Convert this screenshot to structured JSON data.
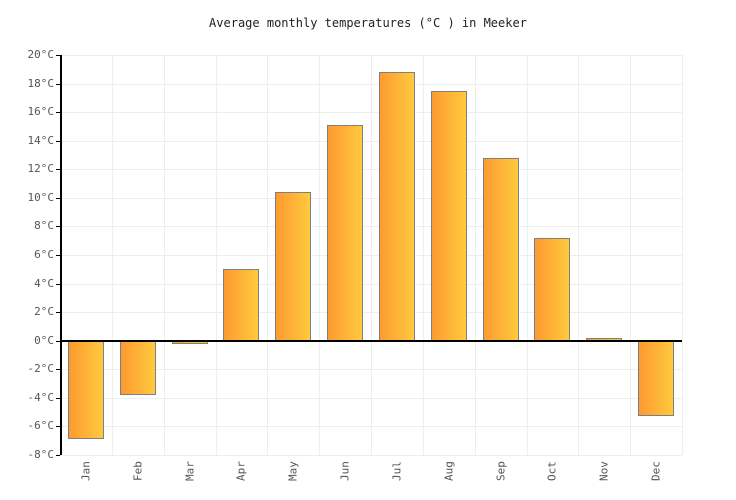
{
  "title": "Average monthly temperatures (°C ) in Meeker",
  "chart_data": {
    "type": "bar",
    "title": "Average monthly temperatures (°C ) in Meeker",
    "categories": [
      "Jan",
      "Feb",
      "Mar",
      "Apr",
      "May",
      "Jun",
      "Jul",
      "Aug",
      "Sep",
      "Oct",
      "Nov",
      "Dec"
    ],
    "values": [
      -6.9,
      -3.8,
      -0.2,
      5.0,
      10.4,
      15.1,
      18.8,
      17.5,
      12.8,
      7.2,
      0.2,
      -5.3
    ],
    "xlabel": "",
    "ylabel": "",
    "ylim": [
      -8,
      20
    ],
    "ytick_step": 2,
    "ytick_suffix": "°C",
    "grid": true,
    "legend": "none",
    "colors": {
      "bar_gradient_left": "#fd9a31",
      "bar_gradient_right": "#ffca3e",
      "bar_border": "#7f7f7f",
      "grid_line": "#eeeeee",
      "axis_line": "#000000",
      "zero_line": "#000000",
      "tick_label": "#555555",
      "title_text": "#222222",
      "background": "#ffffff"
    }
  }
}
